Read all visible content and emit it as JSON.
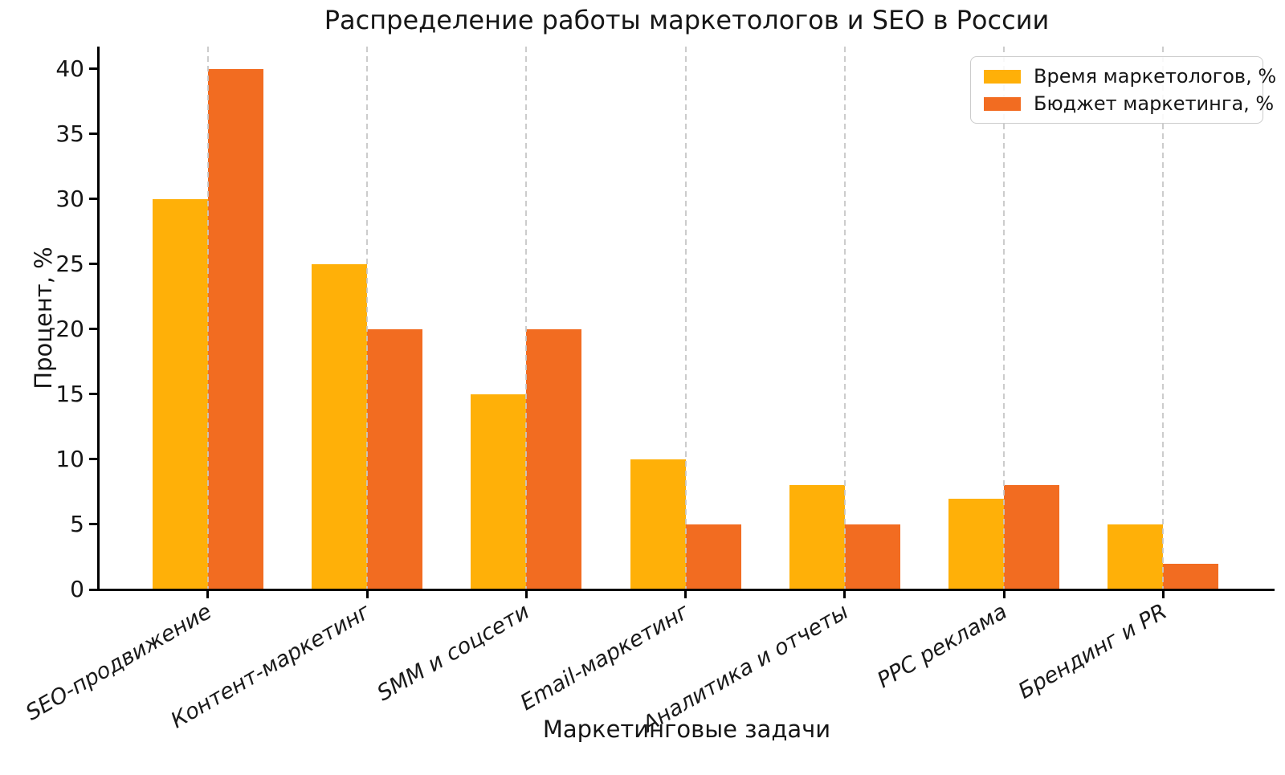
{
  "chart_data": {
    "type": "bar",
    "title": "Распределение работы маркетологов и SEO в России",
    "xlabel": "Маркетинговые задачи",
    "ylabel": "Процент, %",
    "categories": [
      "SEO-продвижение",
      "Контент-маркетинг",
      "SMM и соцсети",
      "Email-маркетинг",
      "Аналитика и отчеты",
      "PPC реклама",
      "Брендинг и PR"
    ],
    "series": [
      {
        "name": "Время маркетологов, %",
        "color": "#FFB008",
        "values": [
          30,
          25,
          15,
          10,
          8,
          7,
          5
        ]
      },
      {
        "name": "Бюджет маркетинга, %",
        "color": "#F26C21",
        "values": [
          40,
          20,
          20,
          5,
          5,
          8,
          2
        ]
      }
    ],
    "yticks": [
      0,
      5,
      10,
      15,
      20,
      25,
      30,
      35,
      40
    ],
    "ylim": [
      0,
      41.7
    ],
    "grid": {
      "axis": "x",
      "style": "dashed",
      "color": "#c6c6c6"
    },
    "legend_position": "top-right",
    "axis_color": "#000000",
    "text_color": "#161616",
    "background": "#ffffff"
  }
}
